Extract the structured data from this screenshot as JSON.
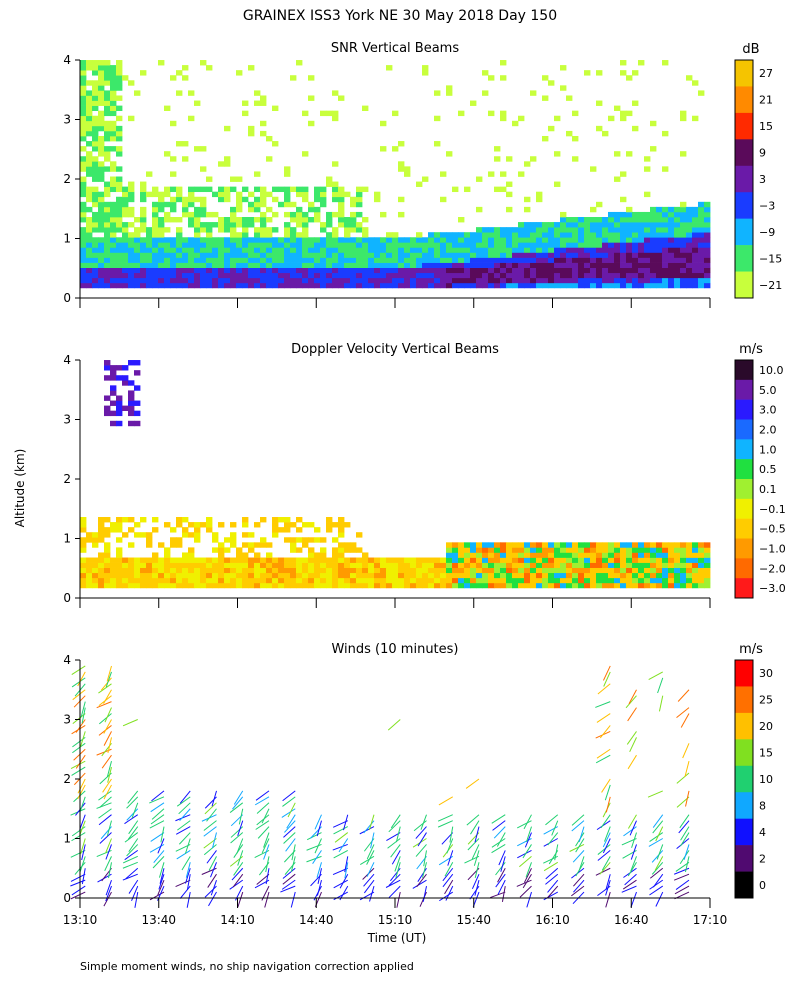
{
  "figure": {
    "title": "GRAINEX ISS3 York NE  30 May 2018 Day 150",
    "ylabel": "Altitude (km)",
    "xlabel": "Time (UT)",
    "footnote": "Simple moment winds, no ship navigation correction applied"
  },
  "chart_data": [
    {
      "type": "heatmap",
      "title": "SNR Vertical Beams",
      "xlabel": "Time (UT)",
      "ylabel": "Altitude (km)",
      "x_ticks": [
        "13:10",
        "13:40",
        "14:10",
        "14:40",
        "15:10",
        "15:40",
        "16:10",
        "16:40",
        "17:10"
      ],
      "x_range_minutes": [
        0,
        240
      ],
      "y_ticks": [
        "0",
        "1",
        "2",
        "3",
        "4"
      ],
      "y_range_km": [
        0,
        4
      ],
      "colorbar_unit": "dB",
      "colorbar_labels": [
        "27",
        "21",
        "15",
        "9",
        "3",
        "−3",
        "−9",
        "−15",
        "−21"
      ],
      "colorbar_colors": [
        "#f5c400",
        "#ff8a00",
        "#ff2a00",
        "#5a0a5a",
        "#6a1aa8",
        "#1a3cff",
        "#10b4ff",
        "#3ce86a",
        "#c8ff3c"
      ],
      "summary": "Strong SNR (-3 to 9 dB) in lowest 1 km, thickening after 15:30; weak returns aloft early in period"
    },
    {
      "type": "heatmap",
      "title": "Doppler Velocity Vertical Beams",
      "xlabel": "Time (UT)",
      "ylabel": "Altitude (km)",
      "x_ticks": [
        "13:10",
        "13:40",
        "14:10",
        "14:40",
        "15:10",
        "15:40",
        "16:10",
        "16:40",
        "17:10"
      ],
      "x_range_minutes": [
        0,
        240
      ],
      "y_ticks": [
        "0",
        "1",
        "2",
        "3",
        "4"
      ],
      "y_range_km": [
        0,
        4
      ],
      "colorbar_unit": "m/s",
      "colorbar_labels": [
        "10.0",
        "5.0",
        "3.0",
        "2.0",
        "1.0",
        "0.5",
        "0.1",
        "−0.1",
        "−0.5",
        "−1.0",
        "−2.0",
        "−3.0"
      ],
      "colorbar_colors": [
        "#2a0a2a",
        "#6a1aa8",
        "#2a1aff",
        "#1a6aff",
        "#10b4ff",
        "#20e040",
        "#a0f030",
        "#f0f000",
        "#ffcc00",
        "#ff9a00",
        "#ff6a00",
        "#ff1a1a"
      ],
      "summary": "Mostly small downward/near-zero velocities (orange/yellow) below 1 km; mixed updrafts after 15:20"
    },
    {
      "type": "scatter",
      "title": "Winds (10 minutes)",
      "xlabel": "Time (UT)",
      "ylabel": "Altitude (km)",
      "x_ticks": [
        "13:10",
        "13:40",
        "14:10",
        "14:40",
        "15:10",
        "15:40",
        "16:10",
        "16:40",
        "17:10"
      ],
      "x_range_minutes": [
        0,
        240
      ],
      "y_ticks": [
        "0",
        "1",
        "2",
        "3",
        "4"
      ],
      "y_range_km": [
        0,
        4
      ],
      "colorbar_unit": "m/s",
      "colorbar_labels": [
        "30",
        "25",
        "20",
        "15",
        "10",
        "8",
        "4",
        "2",
        "0"
      ],
      "colorbar_colors": [
        "#ff0000",
        "#ff7000",
        "#ffc000",
        "#80e020",
        "#20d070",
        "#10a8ff",
        "#1010ff",
        "#500a70",
        "#000000"
      ],
      "summary": "Wind barbs every 10 minutes; mostly 4-15 m/s below 1.5 km; stronger winds (20-30 m/s) aloft around 16:20-17:00"
    }
  ]
}
